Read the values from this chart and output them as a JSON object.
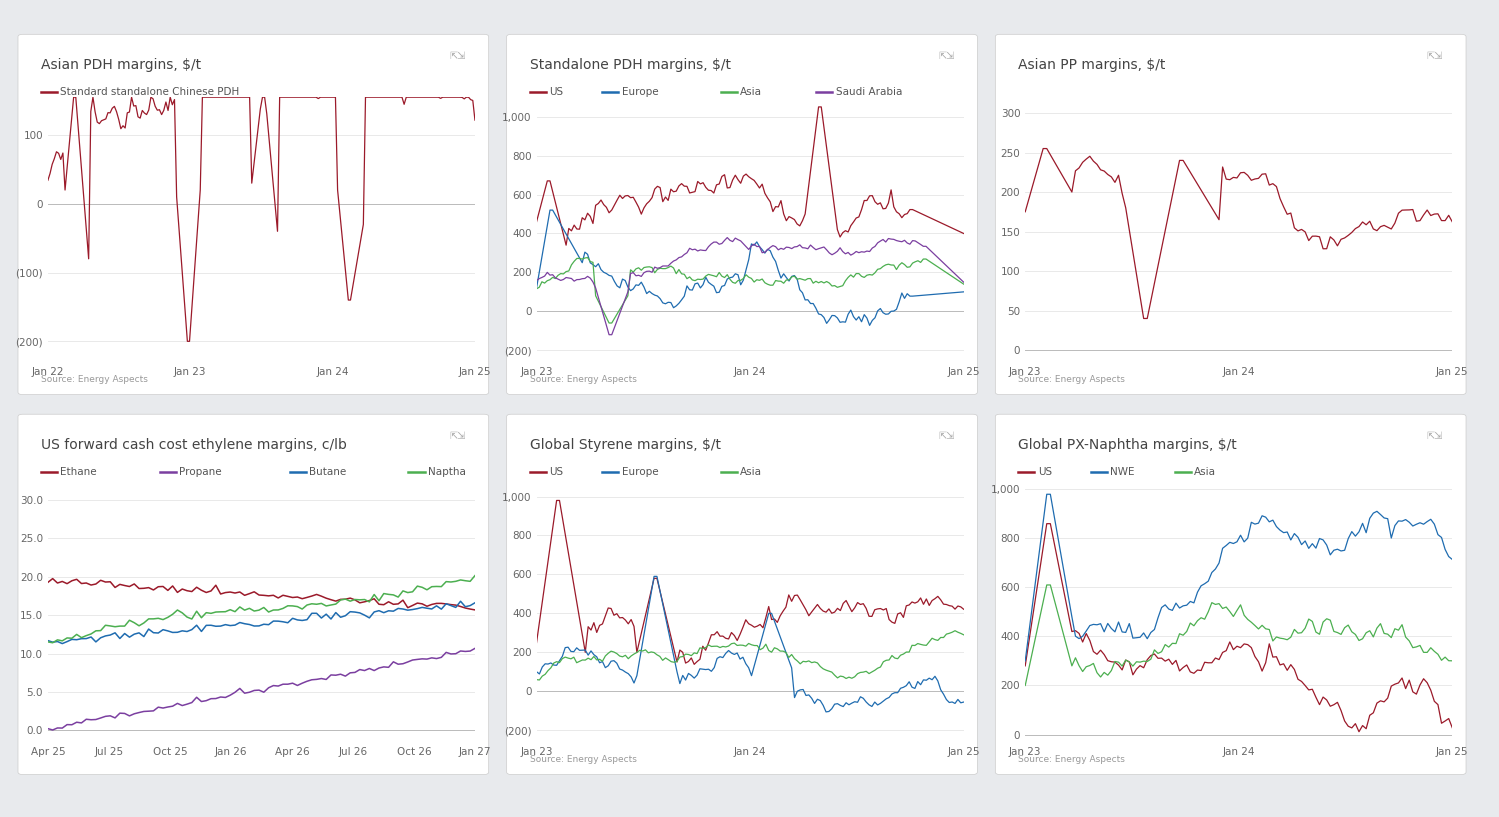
{
  "background_color": "#e8eaed",
  "panel_color": "#ffffff",
  "title_color": "#444444",
  "axis_color": "#999999",
  "source_text": "Source: Energy Aspects",
  "source_fontsize": 7,
  "title_fontsize": 10.5,
  "legend_fontsize": 8.5,
  "chart1": {
    "title": "Asian PDH margins, $/t",
    "legend": [
      "Standard standalone Chinese PDH"
    ],
    "colors": [
      "#9b1a2a"
    ],
    "xlabels": [
      "Jan 22",
      "Jan 23",
      "Jan 24",
      "Jan 25"
    ],
    "yticks": [
      -200,
      -100,
      0,
      100
    ],
    "ylim": [
      -230,
      155
    ],
    "has_source": true
  },
  "chart2": {
    "title": "Standalone PDH margins, $/t",
    "legend": [
      "US",
      "Europe",
      "Asia",
      "Saudi Arabia"
    ],
    "colors": [
      "#9b1a2a",
      "#1f6cb0",
      "#4caf50",
      "#7b3fa0"
    ],
    "xlabels": [
      "Jan 23",
      "Jan 24",
      "Jan 25"
    ],
    "yticks": [
      -200,
      0,
      200,
      400,
      600,
      800,
      1000
    ],
    "ylim": [
      -260,
      1100
    ],
    "has_source": true
  },
  "chart3": {
    "title": "Asian PP margins, $/t",
    "legend": [],
    "colors": [
      "#9b1a2a"
    ],
    "xlabels": [
      "Jan 23",
      "Jan 24",
      "Jan 25"
    ],
    "yticks": [
      0,
      50,
      100,
      150,
      200,
      250,
      300
    ],
    "ylim": [
      -15,
      320
    ],
    "has_source": true
  },
  "chart4": {
    "title": "US forward cash cost ethylene margins, c/lb",
    "legend": [
      "Ethane",
      "Propane",
      "Butane",
      "Naptha"
    ],
    "colors": [
      "#9b1a2a",
      "#7b3fa0",
      "#1f6cb0",
      "#4caf50"
    ],
    "xlabels": [
      "Apr 25",
      "Jul 25",
      "Oct 25",
      "Jan 26",
      "Apr 26",
      "Jul 26",
      "Oct 26",
      "Jan 27"
    ],
    "yticks": [
      0.0,
      5.0,
      10.0,
      15.0,
      20.0,
      25.0,
      30.0
    ],
    "ylim": [
      -1.5,
      33
    ],
    "has_source": false
  },
  "chart5": {
    "title": "Global Styrene margins, $/t",
    "legend": [
      "US",
      "Europe",
      "Asia"
    ],
    "colors": [
      "#9b1a2a",
      "#1f6cb0",
      "#4caf50"
    ],
    "xlabels": [
      "Jan 23",
      "Jan 24",
      "Jan 25"
    ],
    "yticks": [
      -200,
      0,
      200,
      400,
      600,
      800,
      1000
    ],
    "ylim": [
      -260,
      1100
    ],
    "has_source": true
  },
  "chart6": {
    "title": "Global PX-Naphtha margins, $/t",
    "legend": [
      "US",
      "NWE",
      "Asia"
    ],
    "colors": [
      "#9b1a2a",
      "#1f6cb0",
      "#4caf50"
    ],
    "xlabels": [
      "Jan 23",
      "Jan 24",
      "Jan 25"
    ],
    "yticks": [
      0,
      200,
      400,
      600,
      800,
      1000
    ],
    "ylim": [
      -30,
      1050
    ],
    "has_source": true
  }
}
